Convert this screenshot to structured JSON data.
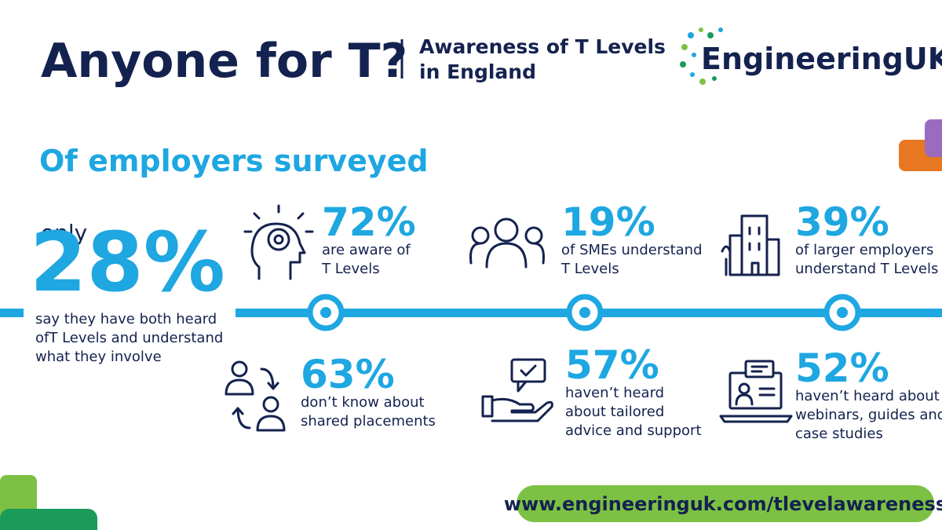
{
  "header": {
    "title": "Anyone for T?",
    "subtitle": [
      "Awareness of T Levels",
      "in England"
    ],
    "logo": "EngineeringUK"
  },
  "section_title": "Of employers surveyed",
  "headline": {
    "prefix": "only",
    "value": "28%",
    "lines": [
      "say they have both heard",
      "ofT Levels and understand",
      "what they involve"
    ]
  },
  "stats": [
    {
      "value": "72%",
      "lines": [
        "are aware of",
        "T Levels"
      ]
    },
    {
      "value": "19%",
      "lines": [
        "of SMEs understand",
        "T Levels"
      ]
    },
    {
      "value": "39%",
      "lines": [
        "of larger employers",
        "understand T Levels"
      ]
    },
    {
      "value": "63%",
      "lines": [
        "don’t know about",
        "shared placements"
      ]
    },
    {
      "value": "57%",
      "lines": [
        "haven’t heard",
        "about tailored",
        "advice and support"
      ]
    },
    {
      "value": "52%",
      "lines": [
        "haven’t heard about",
        "webinars, guides and",
        "case studies"
      ]
    }
  ],
  "footer": {
    "url": "www.engineeringuk.com/tlevelawareness"
  }
}
